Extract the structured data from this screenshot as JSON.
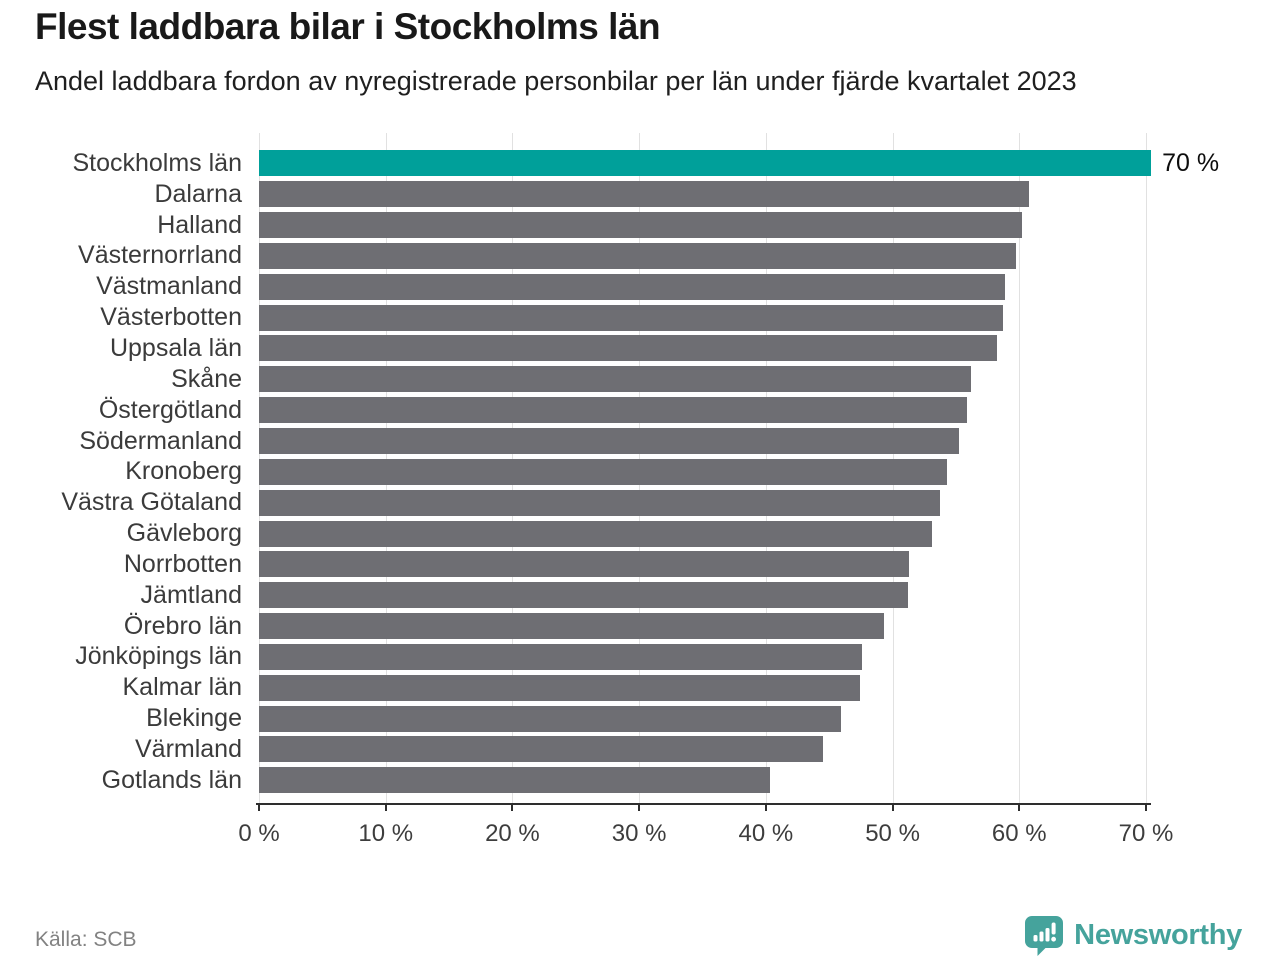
{
  "header": {
    "title": "Flest laddbara bilar i Stockholms län",
    "subtitle": "Andel laddbara fordon av nyregistrerade personbilar per län under fjärde kvartalet 2023"
  },
  "chart_data": {
    "type": "bar",
    "orientation": "horizontal",
    "title": "Flest laddbara bilar i Stockholms län",
    "subtitle": "Andel laddbara fordon av nyregistrerade personbilar per län under fjärde kvartalet 2023",
    "categories": [
      "Stockholms län",
      "Dalarna",
      "Halland",
      "Västernorrland",
      "Västmanland",
      "Västerbotten",
      "Uppsala län",
      "Skåne",
      "Östergötland",
      "Södermanland",
      "Kronoberg",
      "Västra Götaland",
      "Gävleborg",
      "Norrbotten",
      "Jämtland",
      "Örebro län",
      "Jönköpings län",
      "Kalmar län",
      "Blekinge",
      "Värmland",
      "Gotlands län"
    ],
    "values": [
      70.4,
      60.8,
      60.2,
      59.7,
      58.9,
      58.7,
      58.2,
      56.2,
      55.9,
      55.2,
      54.3,
      53.7,
      53.1,
      51.3,
      51.2,
      49.3,
      47.6,
      47.4,
      45.9,
      44.5,
      40.3
    ],
    "highlight_index": 0,
    "highlight_label": "70 %",
    "xlabel": "",
    "ylabel": "",
    "xlim": [
      0,
      70
    ],
    "x_tick_values": [
      0,
      10,
      20,
      30,
      40,
      50,
      60,
      70
    ],
    "x_tick_labels": [
      "0 %",
      "10 %",
      "20 %",
      "30 %",
      "40 %",
      "50 %",
      "60 %",
      "70 %"
    ],
    "grid": "vertical-only",
    "legend": "none",
    "colors": {
      "highlight_bar": "#00a09a",
      "bar": "#6e6e73",
      "gridline": "#e1e1e1",
      "axis": "#2e2e2e"
    }
  },
  "footer": {
    "source": "Källa: SCB",
    "logo_text": "Newsworthy",
    "logo_color": "#45a39c"
  }
}
